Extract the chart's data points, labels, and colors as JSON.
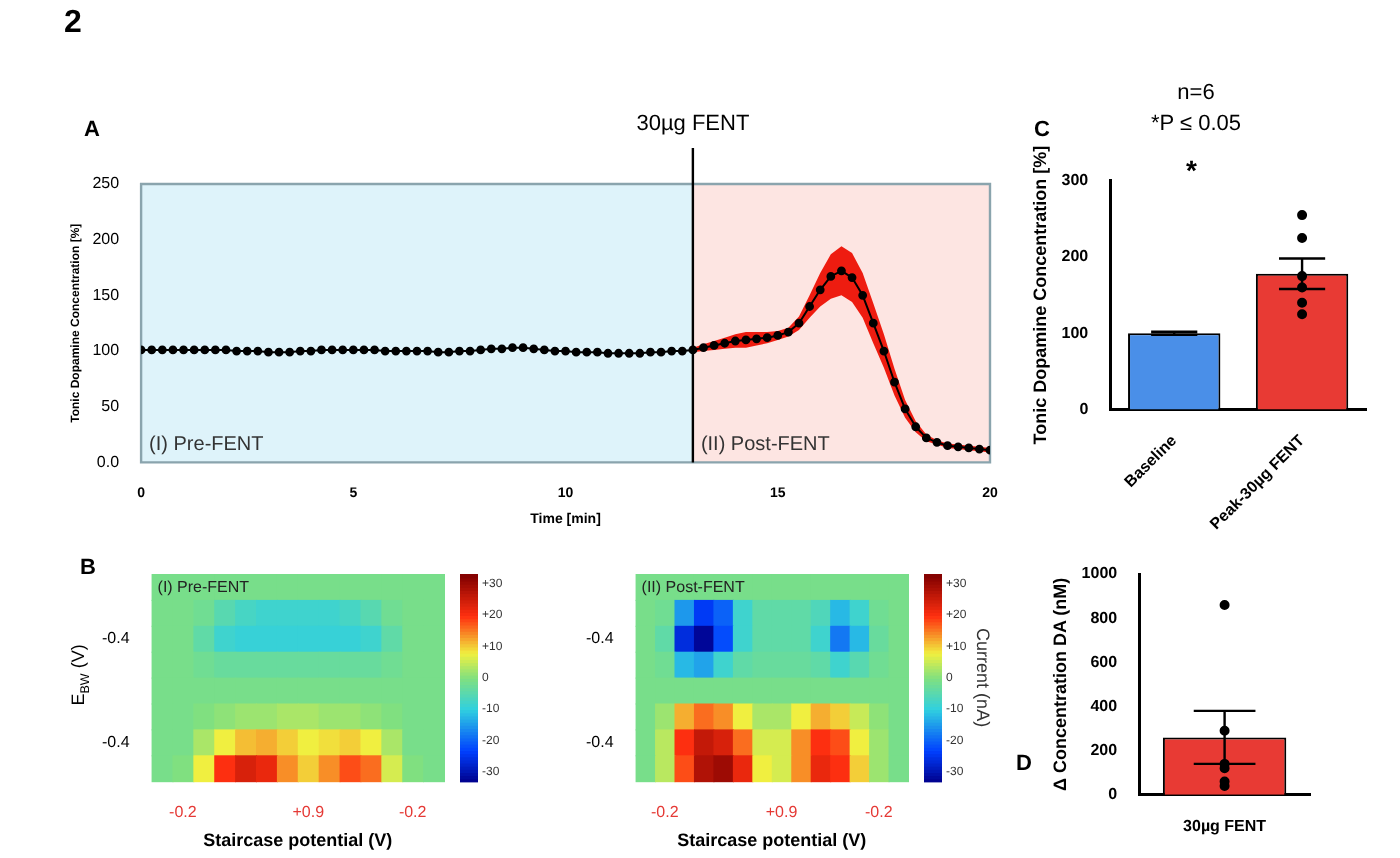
{
  "chart_data": [
    {
      "type": "line",
      "xlabel": "Time [min]",
      "ylabel": "Tonic Dopamine Concentration [%]",
      "annotations": [
        "2",
        "A"
      ],
      "x": [
        0,
        0.25,
        0.5,
        0.75,
        1,
        1.25,
        1.5,
        1.75,
        2,
        2.25,
        2.5,
        2.75,
        3,
        3.25,
        3.5,
        3.75,
        4,
        4.25,
        4.5,
        4.75,
        5,
        5.25,
        5.5,
        5.75,
        6,
        6.25,
        6.5,
        6.75,
        7,
        7.25,
        7.5,
        7.75,
        8,
        8.25,
        8.5,
        8.75,
        9,
        9.25,
        9.5,
        9.75,
        10,
        10.25,
        10.5,
        10.75,
        11,
        11.25,
        11.5,
        11.75,
        12,
        12.25,
        12.5,
        12.75,
        13,
        13.25,
        13.5,
        13.75,
        14,
        14.25,
        14.5,
        14.75,
        15,
        15.25,
        15.5,
        15.75,
        16,
        16.25,
        16.5,
        16.75,
        17,
        17.25,
        17.5,
        17.75,
        18,
        18.25,
        18.5,
        18.75,
        19,
        19.25,
        19.5,
        19.75,
        20
      ],
      "series": [
        {
          "color": "#000000",
          "values": [
            101,
            101,
            101,
            101,
            101,
            101,
            101,
            101,
            101,
            100,
            100,
            100,
            99,
            99,
            99,
            100,
            100,
            101,
            101,
            101,
            101,
            101,
            101,
            100,
            100,
            100,
            100,
            100,
            99,
            99,
            100,
            100,
            101,
            102,
            102,
            103,
            103,
            102,
            101,
            100,
            100,
            99,
            99,
            99,
            98,
            98,
            98,
            98,
            99,
            99,
            100,
            100,
            101,
            103,
            105,
            107,
            109,
            110,
            111,
            112,
            114,
            117,
            125,
            140,
            155,
            167,
            172,
            166,
            150,
            125,
            100,
            72,
            48,
            32,
            22,
            18,
            15,
            14,
            13,
            12,
            11
          ],
          "lower": [
            null,
            null,
            null,
            null,
            null,
            null,
            null,
            null,
            null,
            null,
            null,
            null,
            null,
            null,
            null,
            null,
            null,
            null,
            null,
            null,
            null,
            null,
            null,
            null,
            null,
            null,
            null,
            null,
            null,
            null,
            null,
            null,
            null,
            null,
            null,
            null,
            null,
            null,
            null,
            null,
            null,
            null,
            null,
            null,
            null,
            null,
            null,
            null,
            null,
            null,
            null,
            null,
            99,
            100,
            101,
            102,
            103,
            103,
            105,
            107,
            110,
            113,
            119,
            130,
            140,
            147,
            150,
            144,
            130,
            107,
            85,
            60,
            40,
            27,
            19,
            16,
            13,
            12,
            11,
            10,
            9
          ],
          "upper": [
            null,
            null,
            null,
            null,
            null,
            null,
            null,
            null,
            null,
            null,
            null,
            null,
            null,
            null,
            null,
            null,
            null,
            null,
            null,
            null,
            null,
            null,
            null,
            null,
            null,
            null,
            null,
            null,
            null,
            null,
            null,
            null,
            null,
            null,
            null,
            null,
            null,
            null,
            null,
            null,
            null,
            null,
            null,
            null,
            null,
            null,
            null,
            null,
            null,
            null,
            null,
            null,
            103,
            106,
            109,
            112,
            115,
            117,
            117,
            117,
            118,
            121,
            131,
            150,
            170,
            187,
            194,
            188,
            170,
            143,
            115,
            84,
            56,
            37,
            25,
            20,
            17,
            16,
            15,
            14,
            13
          ]
        }
      ],
      "xlim": [
        0,
        20
      ],
      "xticks": [
        0,
        5,
        10,
        15,
        20
      ],
      "ylim": [
        0,
        250
      ],
      "yticks": [
        {
          "value": 0,
          "label": "0.0"
        },
        50,
        100,
        150,
        200,
        250
      ],
      "bands": [
        {
          "axis": "x",
          "from": 0,
          "to": 13,
          "label": "(I) Pre-FENT",
          "color": "#def3fa"
        },
        {
          "axis": "x",
          "from": 13,
          "to": 20,
          "label": "(II) Post-FENT",
          "color": "#fde5e2"
        }
      ],
      "ref_lines": [
        {
          "axis": "x",
          "value": 13,
          "label": "30µg FENT"
        }
      ],
      "marker": "circle",
      "legend": false,
      "grid": false
    },
    {
      "type": "bar",
      "title": "n=6",
      "subtitle": "*P ≤ 0.05",
      "ylabel": "Tonic Dopamine Concentration [%]",
      "annotations": [
        "C",
        "*"
      ],
      "categories": [
        "Baseline",
        "Peak-30µg FENT"
      ],
      "series": [
        {
          "type": "bar",
          "values": [
            100,
            178
          ],
          "colors": [
            "#4a8fe8",
            "#e83a34"
          ],
          "errors": [
            2,
            20
          ]
        },
        {
          "type": "scatter",
          "color": "#000000",
          "x": [
            "Peak-30µg FENT",
            "Peak-30µg FENT",
            "Peak-30µg FENT",
            "Peak-30µg FENT",
            "Peak-30µg FENT",
            "Peak-30µg FENT"
          ],
          "values": [
            255,
            225,
            175,
            160,
            140,
            125
          ]
        }
      ],
      "ylim": [
        0,
        300
      ],
      "yticks": [
        0,
        100,
        200,
        300
      ],
      "marker": "circle",
      "legend": false,
      "grid": false
    },
    {
      "type": "heatmap",
      "title": "(I) Pre-FENT",
      "ylabel": "E$_{BW}$ (V)",
      "xlabel": "Staircase potential (V)",
      "annotations": [
        "B"
      ],
      "categories": [
        null,
        "-0.2",
        null,
        null,
        null,
        null,
        null,
        "+0.9",
        null,
        null,
        null,
        null,
        "-0.2",
        null
      ],
      "y_categories": [
        null,
        null,
        "-0.4",
        null,
        null,
        null,
        "-0.4",
        null
      ],
      "cells": [
        [
          -1,
          -1,
          -1,
          -1,
          -1,
          -1,
          -1,
          -1,
          -1,
          -1,
          -1,
          -1,
          -1,
          -1
        ],
        [
          -1,
          -1,
          -2,
          -5,
          -7,
          -8,
          -8,
          -8,
          -8,
          -7,
          -5,
          -2,
          -1,
          -1
        ],
        [
          -1,
          -1,
          -4,
          -8,
          -9,
          -9,
          -9,
          -9,
          -9,
          -9,
          -8,
          -4,
          -1,
          -1
        ],
        [
          -1,
          -1,
          -2,
          -3,
          -3,
          -3,
          -3,
          -3,
          -3,
          -3,
          -3,
          -2,
          -1,
          -1
        ],
        [
          -1,
          -1,
          -1,
          -1,
          -1,
          -1,
          -1,
          -1,
          -1,
          -1,
          -1,
          -1,
          -1,
          -1
        ],
        [
          -1,
          -1,
          0,
          1,
          2,
          2,
          3,
          3,
          2,
          2,
          1,
          0,
          -1,
          -1
        ],
        [
          -1,
          -1,
          3,
          8,
          11,
          12,
          10,
          8,
          9,
          10,
          8,
          3,
          -1,
          -1
        ],
        [
          -1,
          0,
          8,
          20,
          24,
          22,
          14,
          10,
          14,
          18,
          16,
          6,
          0,
          -1
        ]
      ],
      "clim": [
        -33,
        33
      ],
      "cticks": [
        {
          "value": 30,
          "label": "+30"
        },
        {
          "value": 20,
          "label": "+20"
        },
        {
          "value": 10,
          "label": "+10"
        },
        0,
        -10,
        -20,
        -30
      ]
    },
    {
      "type": "heatmap",
      "title": "(II) Post-FENT",
      "xlabel": "Staircase potential (V)",
      "clabel": "Current (nA)",
      "categories": [
        null,
        "-0.2",
        null,
        null,
        null,
        null,
        null,
        "+0.9",
        null,
        null,
        null,
        null,
        "-0.2",
        null
      ],
      "y_categories": [
        null,
        null,
        "-0.4",
        null,
        null,
        null,
        "-0.4",
        null
      ],
      "cells": [
        [
          -1,
          -1,
          -1,
          -1,
          -1,
          -1,
          -1,
          -1,
          -1,
          -1,
          -1,
          -1,
          -1,
          -1
        ],
        [
          -1,
          -2,
          -15,
          -24,
          -20,
          -8,
          -4,
          -4,
          -4,
          -6,
          -12,
          -8,
          -2,
          -1
        ],
        [
          -1,
          -4,
          -26,
          -32,
          -22,
          -8,
          -4,
          -4,
          -4,
          -8,
          -18,
          -12,
          -3,
          -1
        ],
        [
          -1,
          -2,
          -12,
          -14,
          -8,
          -4,
          -3,
          -3,
          -3,
          -4,
          -8,
          -5,
          -2,
          -1
        ],
        [
          -1,
          -1,
          -1,
          -1,
          -1,
          -1,
          -1,
          -1,
          -1,
          -1,
          -1,
          -1,
          -1,
          -1
        ],
        [
          -1,
          2,
          12,
          16,
          14,
          8,
          3,
          3,
          8,
          12,
          10,
          5,
          1,
          -1
        ],
        [
          -1,
          4,
          20,
          26,
          24,
          16,
          6,
          6,
          14,
          20,
          18,
          8,
          2,
          -1
        ],
        [
          -1,
          4,
          18,
          28,
          30,
          22,
          8,
          6,
          14,
          22,
          20,
          10,
          2,
          -1
        ]
      ],
      "clim": [
        -33,
        33
      ],
      "cticks": [
        {
          "value": 30,
          "label": "+30"
        },
        {
          "value": 20,
          "label": "+20"
        },
        {
          "value": 10,
          "label": "+10"
        },
        0,
        -10,
        -20,
        -30
      ]
    },
    {
      "type": "bar",
      "ylabel": "Δ Concentration DA (nM)",
      "annotations": [
        "D"
      ],
      "categories": [
        "30µg FENT"
      ],
      "series": [
        {
          "type": "bar",
          "values": [
            260
          ],
          "colors": [
            "#e83a34"
          ],
          "errors": [
            120
          ]
        },
        {
          "type": "scatter",
          "color": "#000000",
          "x": [
            "30µg FENT",
            "30µg FENT",
            "30µg FENT",
            "30µg FENT",
            "30µg FENT",
            "30µg FENT"
          ],
          "values": [
            860,
            290,
            140,
            120,
            60,
            40
          ]
        }
      ],
      "ylim": [
        0,
        1000
      ],
      "yticks": [
        0,
        200,
        400,
        600,
        800,
        1000
      ],
      "marker": "circle",
      "legend": false,
      "grid": false
    }
  ]
}
